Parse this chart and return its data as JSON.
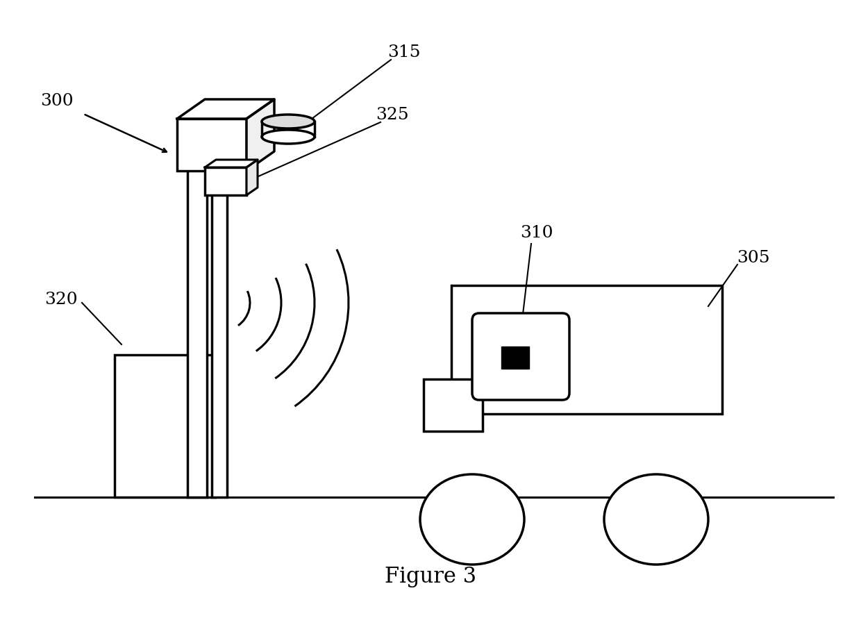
{
  "bg_color": "#ffffff",
  "line_color": "#000000",
  "figure_label": "Figure 3",
  "font_size": 18,
  "title_font_size": 22
}
